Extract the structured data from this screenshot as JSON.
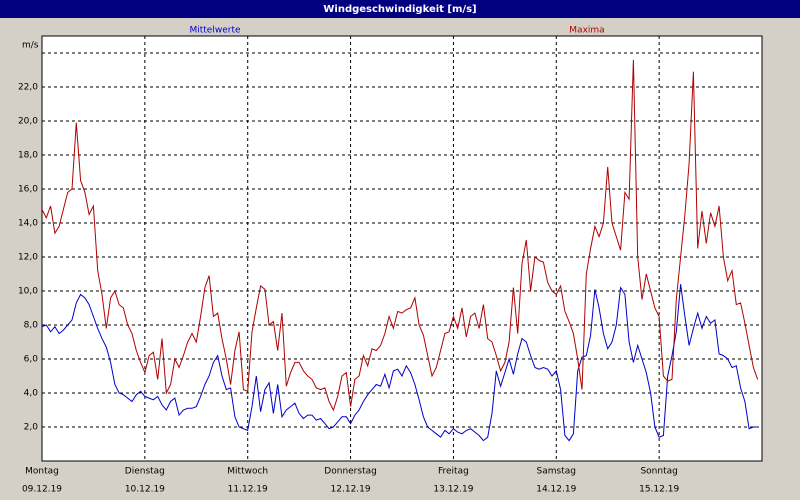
{
  "chart_data": {
    "type": "line",
    "title": "Windgeschwindigkeit [m/s]",
    "ylabel": "m/s",
    "x": [
      0,
      1,
      2,
      3,
      4,
      5,
      6,
      7,
      8,
      9,
      10,
      11,
      12,
      13,
      14,
      15,
      16,
      17,
      18,
      19,
      20,
      21,
      22,
      23,
      24,
      25,
      26,
      27,
      28,
      29,
      30,
      31,
      32,
      33,
      34,
      35,
      36,
      37,
      38,
      39,
      40,
      41,
      42,
      43,
      44,
      45,
      46,
      47,
      48,
      49,
      50,
      51,
      52,
      53,
      54,
      55,
      56,
      57,
      58,
      59,
      60,
      61,
      62,
      63,
      64,
      65,
      66,
      67,
      68,
      69,
      70,
      71,
      72,
      73,
      74,
      75,
      76,
      77,
      78,
      79,
      80,
      81,
      82,
      83,
      84,
      85,
      86,
      87,
      88,
      89,
      90,
      91,
      92,
      93,
      94,
      95,
      96,
      97,
      98,
      99,
      100,
      101,
      102,
      103,
      104,
      105,
      106,
      107,
      108,
      109,
      110,
      111,
      112,
      113,
      114,
      115,
      116,
      117,
      118,
      119,
      120,
      121,
      122,
      123,
      124,
      125,
      126,
      127,
      128,
      129,
      130,
      131,
      132,
      133,
      134,
      135,
      136,
      137,
      138,
      139,
      140,
      141,
      142,
      143,
      144,
      145,
      146,
      147,
      148,
      149,
      150,
      151,
      152,
      153,
      154,
      155,
      156,
      157,
      158,
      159,
      160,
      161,
      162,
      163,
      164,
      165,
      166,
      167
    ],
    "series": [
      {
        "name": "Mittelwerte",
        "color": "#0000c8",
        "values": [
          7.9,
          8.0,
          7.6,
          7.9,
          7.5,
          7.7,
          8.0,
          8.3,
          9.3,
          9.8,
          9.6,
          9.2,
          8.5,
          7.8,
          7.2,
          6.7,
          5.8,
          4.5,
          4.0,
          3.9,
          3.7,
          3.5,
          3.9,
          4.1,
          3.8,
          3.7,
          3.6,
          3.8,
          3.3,
          3.0,
          3.5,
          3.7,
          2.7,
          3.0,
          3.1,
          3.1,
          3.2,
          3.8,
          4.5,
          5.0,
          5.8,
          6.2,
          5.0,
          4.2,
          4.3,
          2.6,
          2.0,
          1.9,
          1.8,
          3.2,
          5.0,
          2.9,
          4.2,
          4.6,
          2.8,
          4.5,
          2.6,
          3.0,
          3.2,
          3.4,
          2.8,
          2.5,
          2.7,
          2.7,
          2.4,
          2.5,
          2.2,
          1.9,
          2.0,
          2.3,
          2.6,
          2.6,
          2.2,
          2.7,
          3.0,
          3.5,
          3.9,
          4.2,
          4.5,
          4.4,
          5.1,
          4.3,
          5.3,
          5.4,
          5.0,
          5.6,
          5.2,
          4.5,
          3.6,
          2.6,
          2.0,
          1.8,
          1.6,
          1.4,
          1.8,
          1.6,
          1.9,
          1.7,
          1.6,
          1.8,
          1.9,
          1.7,
          1.5,
          1.2,
          1.4,
          2.8,
          5.3,
          4.4,
          5.2,
          6.0,
          5.1,
          6.3,
          7.2,
          7.0,
          6.2,
          5.5,
          5.4,
          5.5,
          5.4,
          5.0,
          5.3,
          4.2,
          1.5,
          1.2,
          1.6,
          5.3,
          6.1,
          6.2,
          7.4,
          10.1,
          9.0,
          7.5,
          6.6,
          7.0,
          8.0,
          10.2,
          9.8,
          7.0,
          5.8,
          6.8,
          6.0,
          5.2,
          4.0,
          2.0,
          1.4,
          1.5,
          5.0,
          6.2,
          7.6,
          10.4,
          8.5,
          6.8,
          7.8,
          8.7,
          7.8,
          8.5,
          8.1,
          8.3,
          6.3,
          6.2,
          6.0,
          5.5,
          5.6,
          4.3,
          3.5,
          1.9,
          2.0,
          2.0
        ]
      },
      {
        "name": "Maxima",
        "color": "#b00000",
        "values": [
          14.8,
          14.3,
          15.0,
          13.4,
          13.8,
          14.8,
          15.8,
          16.0,
          19.9,
          16.5,
          15.8,
          14.5,
          15.0,
          11.2,
          9.8,
          7.8,
          9.6,
          10.0,
          9.2,
          9.0,
          8.0,
          7.5,
          6.5,
          5.8,
          5.2,
          6.2,
          6.4,
          4.8,
          7.2,
          4.0,
          4.5,
          6.0,
          5.5,
          6.2,
          7.0,
          7.5,
          7.0,
          8.5,
          10.2,
          10.9,
          8.5,
          8.7,
          7.2,
          6.0,
          4.5,
          6.5,
          7.6,
          4.2,
          4.1,
          7.6,
          9.0,
          10.3,
          10.1,
          8.0,
          8.2,
          6.5,
          8.7,
          4.4,
          5.2,
          5.8,
          5.8,
          5.3,
          5.0,
          4.8,
          4.3,
          4.2,
          4.3,
          3.5,
          3.0,
          3.8,
          5.0,
          5.2,
          3.2,
          4.8,
          5.0,
          6.2,
          5.6,
          6.6,
          6.5,
          6.8,
          7.5,
          8.5,
          7.8,
          8.8,
          8.7,
          8.9,
          9.0,
          9.6,
          8.0,
          7.4,
          6.2,
          5.0,
          5.5,
          6.5,
          7.5,
          7.6,
          8.5,
          7.8,
          9.0,
          7.3,
          8.5,
          8.7,
          7.8,
          9.2,
          7.2,
          7.0,
          6.2,
          5.3,
          5.8,
          7.0,
          10.2,
          7.5,
          11.6,
          13.0,
          10.0,
          12.0,
          11.8,
          11.7,
          10.5,
          10.0,
          9.8,
          10.3,
          8.8,
          8.2,
          7.5,
          6.0,
          4.2,
          11.0,
          12.5,
          13.8,
          13.2,
          14.0,
          17.3,
          14.0,
          13.2,
          12.4,
          15.8,
          15.4,
          23.6,
          12.0,
          9.5,
          11.0,
          10.0,
          9.0,
          8.5,
          5.0,
          4.7,
          4.8,
          9.5,
          12.0,
          14.5,
          17.5,
          22.9,
          12.5,
          14.7,
          12.8,
          14.6,
          13.8,
          15.0,
          12.0,
          10.6,
          11.2,
          9.2,
          9.3,
          8.1,
          6.8,
          5.5,
          4.8
        ]
      }
    ],
    "xlim": [
      0,
      168
    ],
    "xticks": [
      {
        "value": 0,
        "label": "Montag",
        "date": "09.12.19"
      },
      {
        "value": 24,
        "label": "Dienstag",
        "date": "10.12.19"
      },
      {
        "value": 48,
        "label": "Mittwoch",
        "date": "11.12.19"
      },
      {
        "value": 72,
        "label": "Donnerstag",
        "date": "12.12.19"
      },
      {
        "value": 96,
        "label": "Freitag",
        "date": "13.12.19"
      },
      {
        "value": 120,
        "label": "Samstag",
        "date": "14.12.19"
      },
      {
        "value": 144,
        "label": "Sonntag",
        "date": "15.12.19"
      }
    ],
    "ylim": [
      0,
      25
    ],
    "yticks": [
      {
        "value": 2,
        "label": "2,0"
      },
      {
        "value": 4,
        "label": "4,0"
      },
      {
        "value": 6,
        "label": "6,0"
      },
      {
        "value": 8,
        "label": "8,0"
      },
      {
        "value": 10,
        "label": "10,0"
      },
      {
        "value": 12,
        "label": "12,0"
      },
      {
        "value": 14,
        "label": "14,0"
      },
      {
        "value": 16,
        "label": "16,0"
      },
      {
        "value": 18,
        "label": "18,0"
      },
      {
        "value": 20,
        "label": "20,0"
      },
      {
        "value": 22,
        "label": "22,0"
      },
      {
        "value": 24,
        "label": null
      }
    ],
    "grid": true
  }
}
